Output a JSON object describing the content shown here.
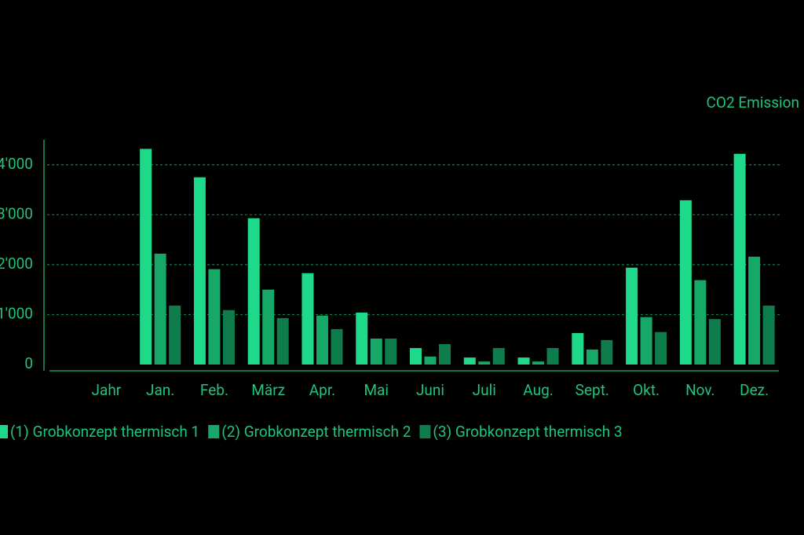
{
  "chart_data": {
    "type": "bar",
    "title": "CO2 Emission",
    "categories": [
      "Jahr",
      "Jan.",
      "Feb.",
      "März",
      "Apr.",
      "Mai",
      "Juni",
      "Juli",
      "Aug.",
      "Sept.",
      "Okt.",
      "Nov.",
      "Dez."
    ],
    "series": [
      {
        "name": "(1) Grobkonzept thermisch 1",
        "color": "#1ed98a",
        "values": [
          null,
          4320,
          3750,
          2930,
          1830,
          1040,
          330,
          140,
          140,
          630,
          1940,
          3290,
          4220
        ]
      },
      {
        "name": "(2) Grobkonzept thermisch 2",
        "color": "#15a866",
        "values": [
          null,
          2220,
          1910,
          1500,
          980,
          520,
          160,
          60,
          60,
          300,
          950,
          1690,
          2160
        ]
      },
      {
        "name": "(3) Grobkonzept thermisch 3",
        "color": "#0e7d4b",
        "values": [
          null,
          1180,
          1090,
          930,
          710,
          520,
          410,
          330,
          330,
          490,
          650,
          910,
          1180
        ]
      }
    ],
    "ylim": [
      0,
      4500
    ],
    "yticks": [
      0,
      {
        "value": 1000,
        "label": "1'000"
      },
      {
        "value": 2000,
        "label": "2'000"
      },
      {
        "value": 3000,
        "label": "3'000"
      },
      {
        "value": 4000,
        "label": "4'000"
      }
    ],
    "grid": true
  }
}
